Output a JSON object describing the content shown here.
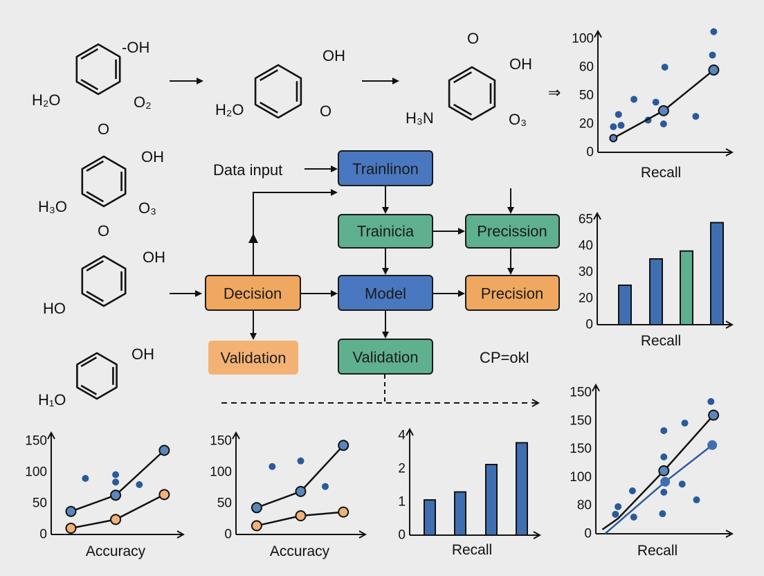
{
  "molecules": [
    {
      "labels": [
        "-OH",
        "H₂O",
        "O₂"
      ]
    },
    {
      "labels": [
        "OH",
        "H₂O",
        "O"
      ]
    },
    {
      "labels": [
        "O",
        "OH",
        "H₃N",
        "O₃"
      ]
    },
    {
      "labels": [
        "O",
        "OH",
        "H₃O",
        "O₃"
      ]
    },
    {
      "labels": [
        "O",
        "OH",
        "HO"
      ]
    },
    {
      "labels": [
        "OH",
        "H₁O"
      ]
    }
  ],
  "reaction_arrow_double": "⇒",
  "flowchart": {
    "data_input": "Data input",
    "nodes": {
      "trainlinon": "Trainlinon",
      "trainicia": "Trainicia",
      "precission": "Precission",
      "decision": "Decision",
      "model": "Model",
      "precision": "Precision",
      "validation_left": "Validation",
      "validation_center": "Validation"
    },
    "cp_text": "CP=okl",
    "colors": {
      "blue": "#4a78c0",
      "green": "#5fb08f",
      "orange": "#f0a860",
      "light_orange": "#f3b274"
    }
  },
  "chart_data": [
    {
      "id": "A",
      "type": "scatter+line",
      "xlabel": "Recall",
      "y_ticks": [
        0,
        20,
        50,
        60,
        100
      ],
      "line": {
        "x": [
          1.2,
          5.1,
          9.0
        ],
        "y": [
          10,
          34,
          59
        ]
      },
      "points": {
        "x": [
          1.2,
          1.6,
          1.8,
          2.8,
          3.9,
          4.5,
          5.2,
          5.1,
          7.6,
          8.9,
          9.0
        ],
        "y": [
          18,
          30,
          19,
          46,
          24,
          43,
          60,
          20,
          28,
          77,
          110
        ]
      },
      "colors": {
        "points": "#2b5a9a",
        "line": "#111111",
        "markers": "#5b86bd"
      }
    },
    {
      "id": "B",
      "type": "bar",
      "xlabel": "Recall",
      "y_ticks": [
        0,
        20,
        30,
        40,
        65
      ],
      "values": [
        25,
        35,
        38,
        62
      ],
      "bar_colors": [
        "#3f6fb0",
        "#3f6fb0",
        "#5fb08f",
        "#3f6fb0"
      ]
    },
    {
      "id": "C",
      "type": "line+scatter",
      "xlabel": "Accuracy",
      "y_ticks": [
        0,
        50,
        100,
        150
      ],
      "series": [
        {
          "x": [
            1.5,
            4.9,
            8.6
          ],
          "y": [
            37,
            63,
            135
          ],
          "color": "#5b86bd"
        },
        {
          "x": [
            1.5,
            4.9,
            8.6
          ],
          "y": [
            10,
            24,
            64
          ],
          "color": "#f0b27a"
        }
      ],
      "points": {
        "x": [
          2.6,
          4.9,
          4.9,
          6.7
        ],
        "y": [
          90,
          96,
          84,
          80
        ]
      },
      "colors": {
        "points": "#2b5a9a"
      }
    },
    {
      "id": "D",
      "type": "line+scatter",
      "xlabel": "Accuracy",
      "y_ticks": [
        0,
        50,
        100,
        150
      ],
      "series": [
        {
          "x": [
            1.6,
            5.0,
            8.3
          ],
          "y": [
            43,
            69,
            143
          ],
          "color": "#5b86bd"
        },
        {
          "x": [
            1.6,
            5.0,
            8.3
          ],
          "y": [
            14,
            30,
            36
          ],
          "color": "#f0b27a"
        }
      ],
      "points": {
        "x": [
          2.8,
          5.0,
          6.9
        ],
        "y": [
          109,
          118,
          77
        ]
      },
      "colors": {
        "points": "#2b5a9a"
      }
    },
    {
      "id": "E",
      "type": "bar",
      "xlabel": "Recall",
      "y_ticks": [
        0,
        1,
        2,
        4
      ],
      "values": [
        1.06,
        1.3,
        2.25,
        3.56
      ],
      "bar_colors": [
        "#3f6fb0",
        "#3f6fb0",
        "#3f6fb0",
        "#3f6fb0"
      ]
    },
    {
      "id": "F",
      "type": "scatter+line",
      "xlabel": "Recall",
      "y_ticks": [
        "0",
        "80",
        "100",
        "150",
        "150",
        "150"
      ],
      "y_scale": "ordinal tick positions",
      "series": [
        {
          "x": [
            0.5,
            1.7,
            5.2,
            9.0
          ],
          "y": [
            0.15,
            0.54,
            2.23,
            4.2
          ],
          "color": "#111111",
          "markers": [
            2,
            3
          ]
        },
        {
          "x": [
            0.7,
            5.3,
            8.9
          ],
          "y": [
            0,
            1.84,
            3.14
          ],
          "color": "#2b5a9a",
          "markers": [
            1,
            2
          ]
        }
      ],
      "points": {
        "x": [
          8.8,
          6.8,
          5.2,
          5.2,
          2.8,
          1.7,
          1.5,
          2.9,
          5.2,
          6.6,
          7.7,
          5.1
        ],
        "y": [
          4.68,
          3.92,
          3.65,
          2.72,
          1.52,
          0.96,
          0.69,
          0.59,
          1.47,
          1.76,
          1.2,
          0.71
        ]
      },
      "colors": {
        "points": "#2b5a9a"
      }
    }
  ]
}
